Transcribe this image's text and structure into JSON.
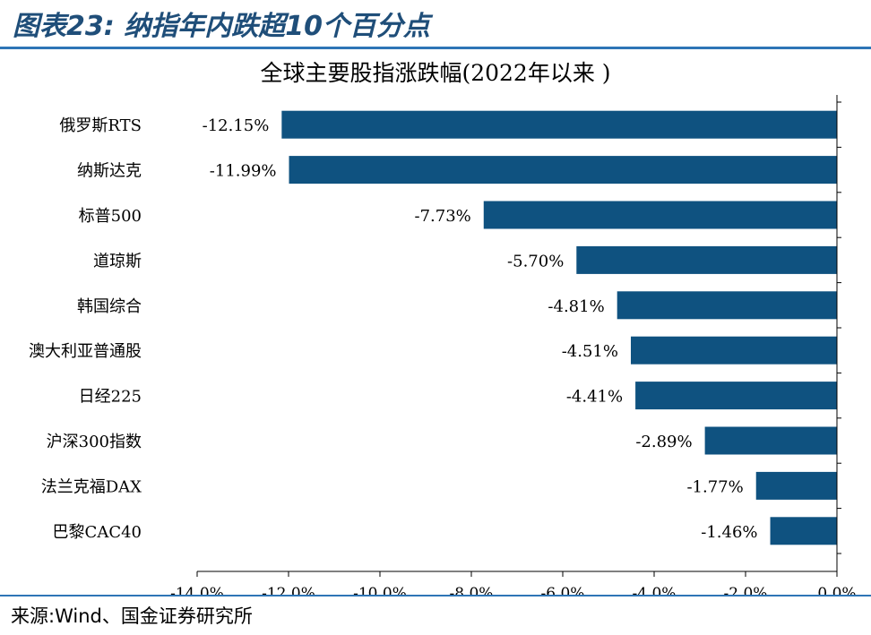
{
  "header": {
    "title": "图表23:  纳指年内跌超10个百分点"
  },
  "footer": {
    "source": "来源:Wind、国金证券研究所"
  },
  "colors": {
    "bar": "#0f5280",
    "accent": "#2e75b6",
    "title": "#1f4e79",
    "axis": "#000000"
  },
  "chart_data": {
    "type": "bar",
    "orientation": "horizontal",
    "title": "全球主要股指涨跌幅(2022年以来 )",
    "categories": [
      "俄罗斯RTS",
      "纳斯达克",
      "标普500",
      "道琼斯",
      "韩国综合",
      "澳大利亚普通股",
      "日经225",
      "沪深300指数",
      "法兰克福DAX",
      "巴黎CAC40"
    ],
    "values": [
      -12.15,
      -11.99,
      -7.73,
      -5.7,
      -4.81,
      -4.51,
      -4.41,
      -2.89,
      -1.77,
      -1.46
    ],
    "data_labels": [
      "-12.15%",
      "-11.99%",
      "-7.73%",
      "-5.70%",
      "-4.81%",
      "-4.51%",
      "-4.41%",
      "-2.89%",
      "-1.77%",
      "-1.46%"
    ],
    "xlim": [
      -14.0,
      0.0
    ],
    "xticks": [
      -14,
      -12,
      -10,
      -8,
      -6,
      -4,
      -2,
      0
    ],
    "xtick_labels": [
      "-14.0%",
      "-12.0%",
      "-10.0%",
      "-8.0%",
      "-6.0%",
      "-4.0%",
      "-2.0%",
      "0.0%"
    ],
    "grid": false,
    "legend": "none"
  }
}
